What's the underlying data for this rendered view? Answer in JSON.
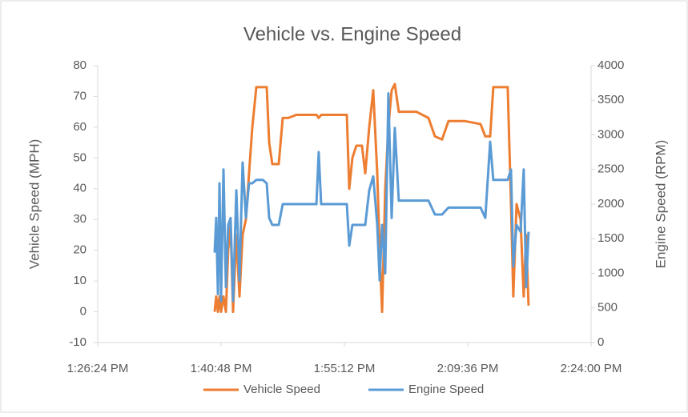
{
  "chart_data": {
    "type": "line",
    "title": "Vehicle vs. Engine Speed",
    "y_label": "Vehicle Speed (MPH)",
    "y2_label": "Engine Speed (RPM)",
    "xlim": [
      "1:26:24 PM",
      "2:24:00 PM"
    ],
    "xticks": [
      "1:26:24 PM",
      "1:40:48 PM",
      "1:55:12 PM",
      "2:09:36 PM",
      "2:24:00 PM"
    ],
    "ylim": [
      -10,
      80
    ],
    "yticks": [
      -10,
      0,
      10,
      20,
      30,
      40,
      50,
      60,
      70,
      80
    ],
    "y2lim": [
      0,
      4000
    ],
    "y2ticks": [
      0,
      500,
      1000,
      1500,
      2000,
      2500,
      3000,
      3500,
      4000
    ],
    "grid": false,
    "legend": "bottom",
    "x": [
      "1:40:03 PM",
      "1:40:14 PM",
      "1:40:26 PM",
      "1:40:37 PM",
      "1:40:48 PM",
      "1:41:05 PM",
      "1:41:22 PM",
      "1:41:38 PM",
      "1:41:55 PM",
      "1:42:12 PM",
      "1:42:35 PM",
      "1:42:57 PM",
      "1:43:19 PM",
      "1:43:42 PM",
      "1:44:04 PM",
      "1:44:27 PM",
      "1:44:55 PM",
      "1:45:40 PM",
      "1:46:08 PM",
      "1:46:25 PM",
      "1:46:47 PM",
      "1:47:32 PM",
      "1:48:00 PM",
      "1:48:39 PM",
      "1:49:35 PM",
      "1:50:31 PM",
      "1:51:56 PM",
      "1:52:12 PM",
      "1:52:29 PM",
      "1:54:16 PM",
      "1:55:29 PM",
      "1:55:46 PM",
      "1:56:08 PM",
      "1:56:36 PM",
      "1:57:15 PM",
      "1:57:38 PM",
      "1:58:06 PM",
      "1:58:34 PM",
      "1:59:02 PM",
      "1:59:19 PM",
      "1:59:36 PM",
      "1:59:58 PM",
      "2:00:20 PM",
      "2:00:43 PM",
      "2:01:05 PM",
      "2:01:33 PM",
      "2:03:37 PM",
      "2:05:01 PM",
      "2:05:46 PM",
      "2:06:36 PM",
      "2:07:21 PM",
      "2:09:13 PM",
      "2:11:06 PM",
      "2:11:39 PM",
      "2:12:13 PM",
      "2:12:35 PM",
      "2:13:20 PM",
      "2:14:16 PM",
      "2:14:39 PM",
      "2:14:55 PM",
      "2:15:18 PM",
      "2:15:46 PM",
      "2:16:08 PM",
      "2:16:25 PM",
      "2:16:42 PM"
    ],
    "series": [
      {
        "name": "Vehicle Speed",
        "color": "#ed7d31",
        "axis": "y",
        "values": [
          0,
          5,
          0,
          5,
          0,
          5,
          0,
          20,
          28,
          0,
          25,
          5,
          25,
          30,
          45,
          60,
          73,
          73,
          73,
          55,
          48,
          48,
          63,
          63,
          64,
          64,
          64,
          63,
          64,
          64,
          64,
          40,
          50,
          54,
          54,
          45,
          60,
          72,
          45,
          20,
          0,
          40,
          60,
          72,
          74,
          65,
          65,
          63,
          57,
          56,
          62,
          62,
          61,
          57,
          57,
          73,
          73,
          73,
          35,
          5,
          35,
          30,
          5,
          25,
          2
        ]
      },
      {
        "name": "Engine Speed",
        "color": "#5b9bd5",
        "axis": "y2",
        "values": [
          1300,
          1800,
          700,
          2300,
          600,
          2500,
          800,
          1700,
          1800,
          600,
          2200,
          900,
          2600,
          1800,
          2300,
          2300,
          2350,
          2350,
          2300,
          1800,
          1700,
          1700,
          2000,
          2000,
          2000,
          2000,
          2000,
          2750,
          2000,
          2000,
          2000,
          1400,
          1700,
          1700,
          1700,
          1700,
          2200,
          2400,
          1700,
          900,
          1700,
          1000,
          3600,
          1800,
          3100,
          2050,
          2050,
          2050,
          1850,
          1850,
          1950,
          1950,
          1950,
          1800,
          2900,
          2350,
          2350,
          2350,
          2500,
          1100,
          1700,
          1600,
          2500,
          800,
          1600
        ]
      }
    ]
  }
}
